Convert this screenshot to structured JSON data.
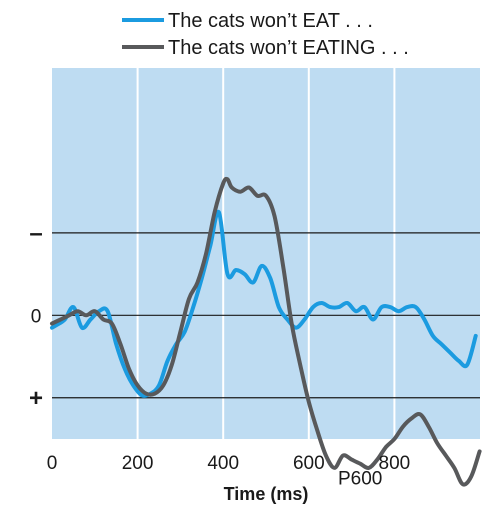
{
  "chart_data": {
    "type": "line",
    "xlabel": "Time (ms)",
    "ylabel": "",
    "xlim": [
      0,
      1000
    ],
    "ylim": [
      -3,
      1.5
    ],
    "y_axis_inverted": true,
    "xticks": [
      0,
      200,
      400,
      600,
      800
    ],
    "xtick_labels": [
      "0",
      "200",
      "400",
      "600",
      "800"
    ],
    "yticks": [
      {
        "value": -1,
        "label": "–"
      },
      {
        "value": 0,
        "label": "0"
      },
      {
        "value": 1,
        "label": "+"
      }
    ],
    "grid": true,
    "legend_position": "top-right",
    "background_color": "#bedcf2",
    "series": [
      {
        "name": "The cats won’t EAT . . .",
        "color": "#1b9be0",
        "x": [
          0,
          10,
          30,
          50,
          70,
          90,
          110,
          130,
          150,
          170,
          190,
          210,
          230,
          250,
          270,
          290,
          310,
          330,
          350,
          370,
          390,
          410,
          430,
          450,
          470,
          490,
          510,
          530,
          550,
          570,
          590,
          610,
          630,
          650,
          670,
          690,
          710,
          730,
          750,
          770,
          790,
          810,
          830,
          850,
          870,
          890,
          910,
          930,
          950,
          970,
          990
        ],
        "y": [
          0.15,
          0.12,
          0.05,
          -0.1,
          0.15,
          0.05,
          -0.05,
          -0.05,
          0.35,
          0.65,
          0.85,
          0.97,
          0.95,
          0.85,
          0.55,
          0.35,
          0.2,
          -0.1,
          -0.45,
          -0.85,
          -1.25,
          -0.5,
          -0.55,
          -0.5,
          -0.4,
          -0.6,
          -0.45,
          -0.1,
          0.05,
          0.15,
          0.05,
          -0.1,
          -0.15,
          -0.1,
          -0.1,
          -0.15,
          -0.05,
          -0.1,
          0.05,
          -0.1,
          -0.1,
          -0.05,
          -0.1,
          -0.1,
          0.05,
          0.25,
          0.35,
          0.45,
          0.55,
          0.6,
          0.25
        ]
      },
      {
        "name": "The cats won’t EATING . . .",
        "color": "#58595b",
        "x": [
          0,
          20,
          40,
          60,
          80,
          100,
          120,
          140,
          160,
          180,
          200,
          220,
          240,
          260,
          280,
          300,
          320,
          340,
          360,
          380,
          400,
          410,
          420,
          440,
          460,
          480,
          500,
          520,
          540,
          560,
          580,
          600,
          620,
          640,
          660,
          680,
          700,
          720,
          740,
          760,
          780,
          800,
          820,
          840,
          860,
          880,
          900,
          920,
          940,
          960,
          980,
          999
        ],
        "y": [
          0.1,
          0.05,
          0,
          -0.05,
          0,
          -0.05,
          0.05,
          0.1,
          0.35,
          0.65,
          0.85,
          0.95,
          0.95,
          0.85,
          0.6,
          0.2,
          -0.2,
          -0.4,
          -0.75,
          -1.25,
          -1.6,
          -1.65,
          -1.55,
          -1.5,
          -1.55,
          -1.45,
          -1.45,
          -1.2,
          -0.6,
          0.1,
          0.6,
          1.05,
          1.4,
          1.7,
          1.85,
          1.7,
          1.75,
          1.8,
          1.85,
          1.75,
          1.6,
          1.5,
          1.35,
          1.25,
          1.2,
          1.35,
          1.55,
          1.7,
          1.85,
          2.05,
          1.95,
          1.65
        ]
      }
    ],
    "annotations": [
      {
        "text": "P600",
        "x": 720,
        "y": 1.8
      }
    ]
  }
}
